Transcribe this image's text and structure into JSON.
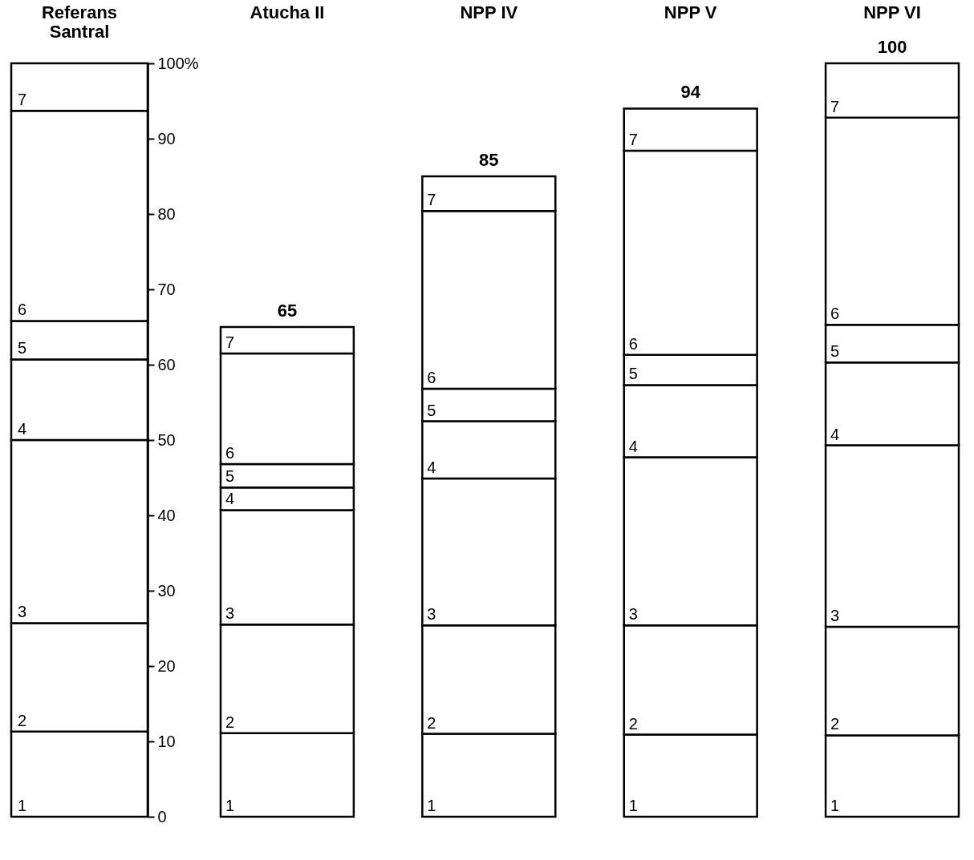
{
  "chart_data": {
    "type": "bar",
    "stacked": true,
    "categories": [
      "Referans Santral",
      "Atucha II",
      "NPP IV",
      "NPP V",
      "NPP VI"
    ],
    "series": [
      {
        "name": "1",
        "color": "#ffffff",
        "values": [
          11.3,
          11.1,
          11.0,
          10.9,
          10.8
        ]
      },
      {
        "name": "2",
        "color": "#ffffff",
        "values": [
          14.4,
          14.4,
          14.4,
          14.5,
          14.4
        ]
      },
      {
        "name": "3",
        "color": "#ffffff",
        "values": [
          24.3,
          15.2,
          19.5,
          22.3,
          24.1
        ]
      },
      {
        "name": "4",
        "color": "#ffffff",
        "values": [
          10.7,
          3.0,
          7.6,
          9.6,
          11.0
        ]
      },
      {
        "name": "5",
        "color": "#ffffff",
        "values": [
          5.1,
          3.1,
          4.3,
          4.0,
          5.0
        ]
      },
      {
        "name": "6",
        "color": "#ffffff",
        "values": [
          27.9,
          14.7,
          23.6,
          27.1,
          27.5
        ]
      },
      {
        "name": "7",
        "color": "#ffffff",
        "values": [
          6.3,
          3.5,
          4.6,
          5.6,
          7.2
        ]
      }
    ],
    "totals": [
      null,
      "65",
      "85",
      "94",
      "100"
    ],
    "ylim": [
      0,
      100
    ],
    "yticks": [
      0,
      10,
      20,
      30,
      40,
      50,
      60,
      70,
      80,
      90,
      {
        "value": 100,
        "label": "100%"
      }
    ]
  }
}
